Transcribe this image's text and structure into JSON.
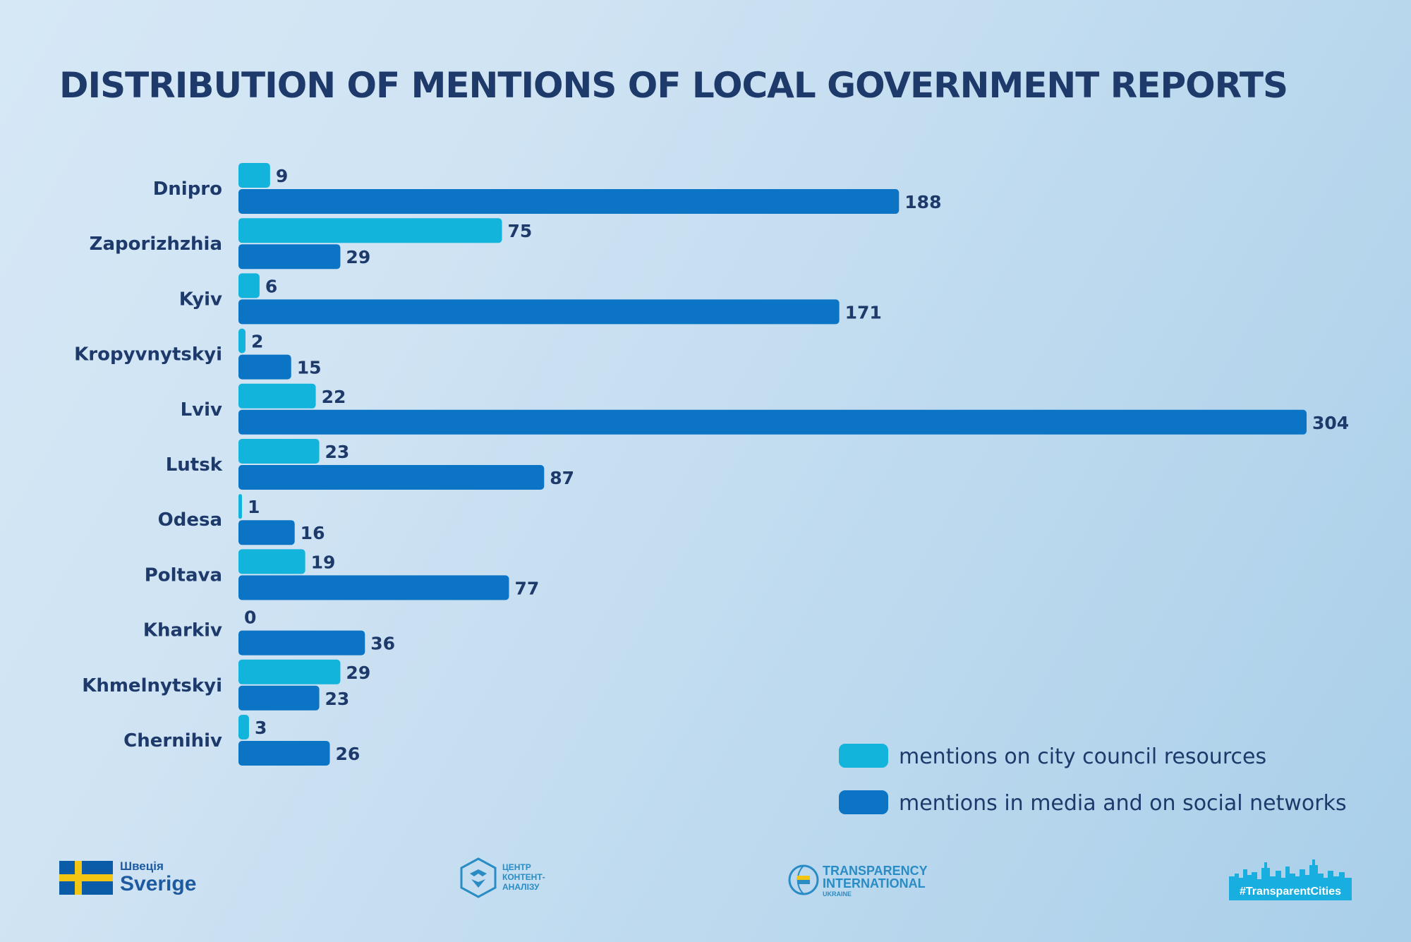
{
  "chart_data": {
    "type": "bar",
    "orientation": "horizontal",
    "title": "DISTRIBUTION OF MENTIONS OF LOCAL GOVERNMENT REPORTS",
    "categories": [
      "Dnipro",
      "Zaporizhzhia",
      "Kyiv",
      "Kropyvnytskyi",
      "Lviv",
      "Lutsk",
      "Odesa",
      "Poltava",
      "Kharkiv",
      "Khmelnytskyi",
      "Chernihiv"
    ],
    "series": [
      {
        "name": "mentions on city council resources",
        "color": "#12b4dc",
        "values": [
          9,
          75,
          6,
          2,
          22,
          23,
          1,
          19,
          0,
          29,
          3
        ]
      },
      {
        "name": "mentions in media and on social networks",
        "color": "#0b74c4",
        "values": [
          188,
          29,
          171,
          15,
          304,
          87,
          16,
          77,
          36,
          23,
          26
        ]
      }
    ],
    "xlim": [
      0,
      304
    ],
    "grid": false,
    "legend_position": "bottom-right",
    "data_labels": true
  },
  "footer": {
    "sverige_small": "Швеція",
    "sverige_big": "Sverige",
    "centr_text": "ЦЕНТР\nКОНТЕНТ-\nАНАЛІЗУ",
    "ti_line1": "TRANSPARENCY",
    "ti_line2": "INTERNATIONAL",
    "ti_line3": "UKRAINE",
    "tc_tag": "#TransparentCities"
  }
}
